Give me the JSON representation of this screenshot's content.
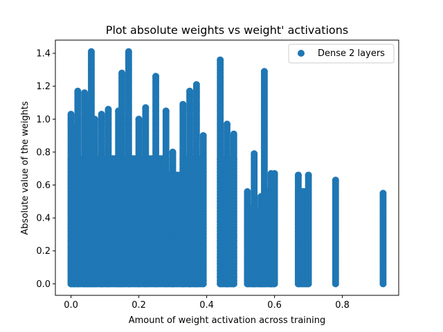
{
  "chart_data": {
    "type": "scatter",
    "title": "Plot absolute weights vs weight' activations",
    "xlabel": "Amount of weight activation across training",
    "ylabel": "Absolute value of the weights",
    "xlim": [
      -0.046,
      0.966
    ],
    "ylim": [
      -0.07,
      1.48
    ],
    "xticks": [
      "0.0",
      "0.2",
      "0.4",
      "0.6",
      "0.8"
    ],
    "yticks": [
      "0.0",
      "0.2",
      "0.4",
      "0.6",
      "0.8",
      "1.0",
      "1.2",
      "1.4"
    ],
    "grid": false,
    "legend_position": "top-right",
    "color": "#1f77b4",
    "series": [
      {
        "name": "Dense 2 layers",
        "columns": [
          {
            "x": 0.0,
            "ymax": 1.03
          },
          {
            "x": 0.01,
            "ymax": 0.95
          },
          {
            "x": 0.02,
            "ymax": 1.17
          },
          {
            "x": 0.04,
            "ymax": 1.16
          },
          {
            "x": 0.05,
            "ymax": 1.1
          },
          {
            "x": 0.06,
            "ymax": 1.41
          },
          {
            "x": 0.07,
            "ymax": 1.0
          },
          {
            "x": 0.09,
            "ymax": 1.03
          },
          {
            "x": 0.11,
            "ymax": 1.06
          },
          {
            "x": 0.14,
            "ymax": 1.05
          },
          {
            "x": 0.15,
            "ymax": 1.28
          },
          {
            "x": 0.17,
            "ymax": 1.41
          },
          {
            "x": 0.2,
            "ymax": 1.0
          },
          {
            "x": 0.22,
            "ymax": 1.07
          },
          {
            "x": 0.25,
            "ymax": 1.26
          },
          {
            "x": 0.28,
            "ymax": 1.05
          },
          {
            "x": 0.3,
            "ymax": 0.8
          },
          {
            "x": 0.33,
            "ymax": 1.09
          },
          {
            "x": 0.35,
            "ymax": 1.17
          },
          {
            "x": 0.37,
            "ymax": 1.21
          },
          {
            "x": 0.39,
            "ymax": 0.9
          },
          {
            "x": 0.44,
            "ymax": 1.36
          },
          {
            "x": 0.46,
            "ymax": 0.97
          },
          {
            "x": 0.48,
            "ymax": 0.91
          },
          {
            "x": 0.52,
            "ymax": 0.56
          },
          {
            "x": 0.54,
            "ymax": 0.79
          },
          {
            "x": 0.56,
            "ymax": 0.53
          },
          {
            "x": 0.57,
            "ymax": 1.29
          },
          {
            "x": 0.59,
            "ymax": 0.67
          },
          {
            "x": 0.6,
            "ymax": 0.67
          },
          {
            "x": 0.67,
            "ymax": 0.66
          },
          {
            "x": 0.7,
            "ymax": 0.66
          },
          {
            "x": 0.78,
            "ymax": 0.63
          },
          {
            "x": 0.92,
            "ymax": 0.55
          }
        ]
      }
    ]
  }
}
